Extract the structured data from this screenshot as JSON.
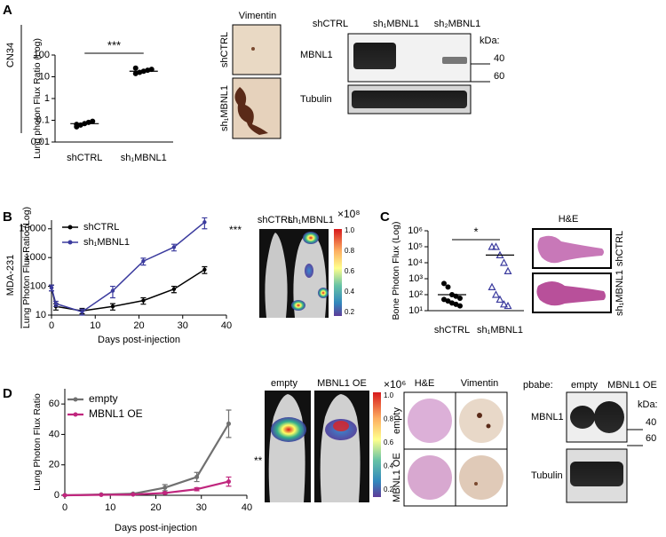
{
  "chart_data": [
    {
      "type": "strip",
      "side_label": "CN34",
      "ylabel": "Lung photon Flux Ratio (Log)",
      "log_y": true,
      "categories": [
        "shCTRL",
        "sh₁MBNL1"
      ],
      "groups": [
        {
          "color": "#000000",
          "marker": "circle",
          "values": [
            0.05,
            0.06,
            0.07,
            0.08,
            0.09,
            0.065
          ]
        },
        {
          "color": "#000000",
          "marker": "circle",
          "values": [
            14,
            16,
            18,
            20,
            22,
            25
          ]
        }
      ],
      "means": [
        0.07,
        18
      ],
      "significance": "***",
      "ylim": [
        0.01,
        100
      ],
      "yticks": [
        0.01,
        0.1,
        1,
        10,
        100
      ]
    },
    {
      "type": "line",
      "side_label": "MDA-231",
      "ylabel": "Lung Photon Flux Ratio (Log)",
      "xlabel": "Days post-injection",
      "log_y": true,
      "x": [
        0,
        1,
        7,
        14,
        21,
        28,
        35
      ],
      "series": [
        {
          "name": "shCTRL",
          "color": "#000000",
          "values": [
            90,
            20,
            14,
            20,
            32,
            80,
            380
          ],
          "errors": [
            20,
            5,
            3,
            5,
            8,
            20,
            100
          ]
        },
        {
          "name": "sh₁MBNL1",
          "color": "#3b3b9e",
          "values": [
            90,
            25,
            13,
            70,
            750,
            2300,
            17000
          ],
          "errors": [
            20,
            5,
            3,
            30,
            200,
            600,
            7000
          ]
        }
      ],
      "significance": "***",
      "legend": "upper left",
      "xlim": [
        0,
        40
      ],
      "xticks": [
        0,
        10,
        20,
        30,
        40
      ],
      "ylim": [
        10,
        20000
      ],
      "yticks": [
        10,
        100,
        1000,
        10000
      ]
    },
    {
      "type": "strip",
      "ylabel": "Bone Photon Flux (Log)",
      "log_y": true,
      "categories": [
        "shCTRL",
        "sh₁MBNL1"
      ],
      "groups": [
        {
          "color": "#000000",
          "marker": "circle",
          "values": [
            500,
            300,
            100,
            80,
            60,
            50,
            40,
            30,
            25,
            20
          ]
        },
        {
          "color": "#3b3b9e",
          "marker": "triangle",
          "values": [
            100000,
            100000,
            30000,
            10000,
            3000,
            300,
            100,
            50,
            25,
            20
          ]
        }
      ],
      "means": [
        100,
        30000
      ],
      "significance": "*",
      "ylim": [
        10,
        1000000
      ],
      "yticks": [
        {
          "value": 10,
          "label": "10¹"
        },
        {
          "value": 100,
          "label": "10²"
        },
        {
          "value": 1000,
          "label": "10³"
        },
        {
          "value": 10000,
          "label": "10⁴"
        },
        {
          "value": 100000,
          "label": "10⁵"
        },
        {
          "value": 1000000,
          "label": "10⁶"
        }
      ]
    },
    {
      "type": "line",
      "ylabel": "Lung Photon Flux Ratio",
      "xlabel": "Days post-injection",
      "log_y": false,
      "x": [
        0,
        8,
        15,
        22,
        29,
        36
      ],
      "series": [
        {
          "name": "empty",
          "color": "#707070",
          "values": [
            0,
            0.5,
            1,
            5,
            12,
            47
          ],
          "errors": [
            0.3,
            0.3,
            0.5,
            2,
            3,
            9
          ]
        },
        {
          "name": "MBNL1 OE",
          "color": "#c0267e",
          "values": [
            0,
            0.3,
            0.5,
            1.5,
            4,
            9
          ],
          "errors": [
            0.2,
            0.2,
            0.3,
            0.5,
            1,
            3
          ]
        }
      ],
      "significance": "**",
      "legend": "upper left",
      "xlim": [
        0,
        40
      ],
      "xticks": [
        0,
        10,
        20,
        30,
        40
      ],
      "ylim": [
        0,
        70
      ],
      "yticks": [
        0,
        20,
        40,
        60
      ]
    }
  ],
  "panels": {
    "A": {
      "letter": "A",
      "vimentin_title": "Vimentin",
      "vimentin_rows": [
        "shCTRL",
        "sh₁MBNL1"
      ],
      "blot": {
        "lanes": [
          "shCTRL",
          "sh₁MBNL1",
          "sh₂MBNL1"
        ],
        "rows": [
          "MBNL1",
          "Tubulin"
        ],
        "kda": "kDa:",
        "markers": [
          "40",
          "60"
        ]
      }
    },
    "B": {
      "letter": "B",
      "mice": [
        "shCTRL",
        "sh₁MBNL1"
      ],
      "colorbar_unit": "×10⁸",
      "colorbar_ticks": [
        "1.0",
        "0.8",
        "0.6",
        "0.4",
        "0.2"
      ]
    },
    "C": {
      "letter": "C",
      "stain": "H&E",
      "rows": [
        "shCTRL",
        "sh₁MBNL1"
      ]
    },
    "D": {
      "letter": "D",
      "mice": [
        "empty",
        "MBNL1 OE"
      ],
      "colorbar_unit": "×10⁶",
      "colorbar_ticks": [
        "1.0",
        "0.8",
        "0.6",
        "0.4",
        "0.2"
      ],
      "histo_cols": [
        "H&E",
        "Vimentin"
      ],
      "histo_rows": [
        "empty",
        "MBNL1 OE"
      ],
      "blot": {
        "prefix": "pbabe:",
        "lanes": [
          "empty",
          "MBNL1 OE"
        ],
        "rows": [
          "MBNL1",
          "Tubulin"
        ],
        "kda": "kDa:",
        "markers": [
          "40",
          "60"
        ]
      }
    }
  }
}
